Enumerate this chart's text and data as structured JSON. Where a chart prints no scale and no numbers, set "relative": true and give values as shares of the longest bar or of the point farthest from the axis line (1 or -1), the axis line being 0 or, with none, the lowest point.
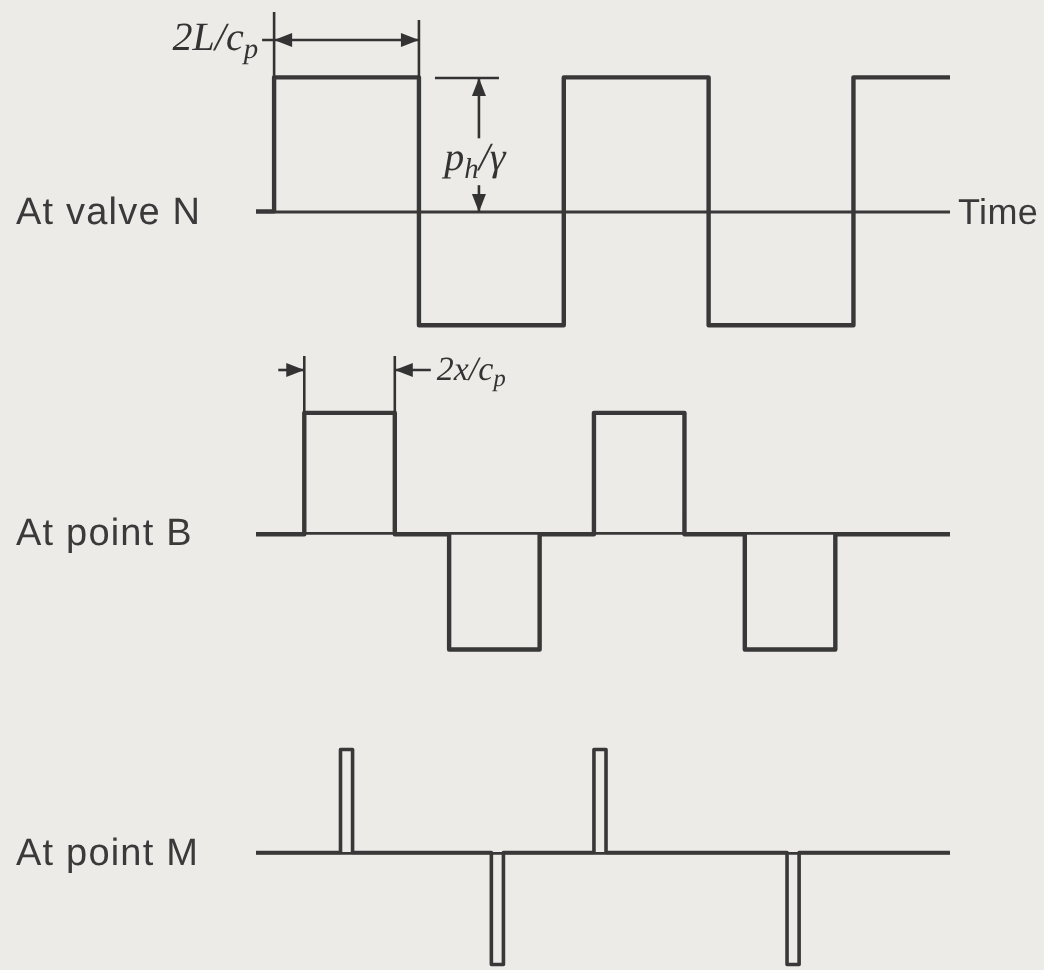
{
  "chart_data": [
    {
      "type": "step",
      "relative": true,
      "ylabel": "At valve N",
      "xlabel": "Time",
      "color": "#383838",
      "annotations": [
        "2L/c$_{p}$",
        "p$_{h}$/γ"
      ],
      "categories": [
        null,
        null,
        null,
        null,
        null,
        null,
        null,
        null,
        null,
        null,
        null,
        null,
        null,
        null,
        null,
        null,
        null,
        null,
        null,
        null,
        null,
        null,
        null,
        null,
        null,
        null,
        null,
        null,
        null,
        null,
        null,
        null,
        null,
        null,
        null,
        null,
        null,
        null,
        null,
        null,
        null,
        null,
        null,
        null,
        null,
        null,
        null,
        null,
        null,
        null,
        null,
        null,
        null,
        null,
        null,
        null,
        null,
        null,
        null,
        null,
        null,
        null,
        null,
        null,
        null,
        null,
        null,
        null,
        null,
        null,
        null,
        null,
        null,
        null,
        null,
        null,
        null,
        null,
        null,
        null,
        null,
        null,
        null,
        null,
        null,
        null,
        null,
        null,
        null,
        null,
        null,
        null,
        null,
        null,
        null,
        null,
        null,
        null,
        null,
        null,
        null,
        null,
        null,
        null,
        null,
        null,
        null,
        null,
        null,
        null,
        null,
        null,
        null,
        null,
        null,
        null
      ],
      "values": [
        0,
        0,
        0,
        1,
        1,
        1,
        1,
        1,
        1,
        1,
        1,
        1,
        1,
        1,
        1,
        1,
        1,
        1,
        1,
        1,
        1,
        1,
        1,
        1,
        1,
        1,
        1,
        -0.85,
        -0.85,
        -0.85,
        -0.85,
        -0.85,
        -0.85,
        -0.85,
        -0.85,
        -0.85,
        -0.85,
        -0.85,
        -0.85,
        -0.85,
        -0.85,
        -0.85,
        -0.85,
        -0.85,
        -0.85,
        -0.85,
        -0.85,
        -0.85,
        -0.85,
        -0.85,
        -0.85,
        1,
        1,
        1,
        1,
        1,
        1,
        1,
        1,
        1,
        1,
        1,
        1,
        1,
        1,
        1,
        1,
        1,
        1,
        1,
        1,
        1,
        1,
        1,
        1,
        -0.85,
        -0.85,
        -0.85,
        -0.85,
        -0.85,
        -0.85,
        -0.85,
        -0.85,
        -0.85,
        -0.85,
        -0.85,
        -0.85,
        -0.85,
        -0.85,
        -0.85,
        -0.85,
        -0.85,
        -0.85,
        -0.85,
        -0.85,
        -0.85,
        -0.85,
        -0.85,
        -0.85,
        1,
        1,
        1,
        1,
        1,
        1,
        1,
        1,
        1,
        1,
        1,
        1,
        1,
        1,
        1,
        1,
        1
      ]
    },
    {
      "type": "step",
      "relative": true,
      "ylabel": "At point B",
      "color": "#383838",
      "annotations": [
        "2x/c$_{p}$"
      ],
      "categories": [
        null,
        null,
        null,
        null,
        null,
        null,
        null,
        null,
        null,
        null,
        null,
        null,
        null,
        null,
        null,
        null,
        null,
        null,
        null,
        null,
        null,
        null,
        null,
        null,
        null,
        null,
        null,
        null,
        null,
        null,
        null,
        null,
        null,
        null,
        null,
        null,
        null,
        null,
        null,
        null,
        null,
        null,
        null,
        null,
        null,
        null,
        null,
        null,
        null,
        null,
        null,
        null,
        null,
        null,
        null,
        null,
        null,
        null,
        null,
        null,
        null,
        null,
        null,
        null,
        null,
        null,
        null,
        null,
        null,
        null,
        null,
        null,
        null,
        null,
        null,
        null,
        null,
        null,
        null,
        null,
        null,
        null,
        null,
        null,
        null,
        null,
        null,
        null,
        null,
        null,
        null,
        null,
        null,
        null,
        null,
        null,
        null,
        null,
        null,
        null,
        null,
        null,
        null,
        null,
        null,
        null,
        null,
        null,
        null,
        null,
        null,
        null,
        null,
        null,
        null,
        null
      ],
      "values": [
        0,
        0,
        0,
        0,
        0,
        0,
        0,
        0,
        1,
        1,
        1,
        1,
        1,
        1,
        1,
        1,
        1,
        1,
        1,
        1,
        1,
        1,
        1,
        0,
        0,
        0,
        0,
        0,
        0,
        0,
        0,
        0,
        -0.95,
        -0.95,
        -0.95,
        -0.95,
        -0.95,
        -0.95,
        -0.95,
        -0.95,
        -0.95,
        -0.95,
        -0.95,
        -0.95,
        -0.95,
        -0.95,
        -0.95,
        0,
        0,
        0,
        0,
        0,
        0,
        0,
        0,
        0,
        1,
        1,
        1,
        1,
        1,
        1,
        1,
        1,
        1,
        1,
        1,
        1,
        1,
        1,
        1,
        0,
        0,
        0,
        0,
        0,
        0,
        0,
        0,
        0,
        0,
        -0.95,
        -0.95,
        -0.95,
        -0.95,
        -0.95,
        -0.95,
        -0.95,
        -0.95,
        -0.95,
        -0.95,
        -0.95,
        -0.95,
        -0.95,
        -0.95,
        -0.95,
        0,
        0,
        0,
        0,
        0,
        0,
        0,
        0,
        0,
        0,
        0,
        0,
        0,
        0,
        0,
        0,
        0,
        0,
        0,
        0
      ]
    },
    {
      "type": "step",
      "relative": true,
      "ylabel": "At point M",
      "color": "#383838",
      "categories": [
        null,
        null,
        null,
        null,
        null,
        null,
        null,
        null,
        null,
        null,
        null,
        null,
        null,
        null,
        null,
        null,
        null,
        null,
        null,
        null,
        null,
        null,
        null,
        null,
        null,
        null,
        null,
        null,
        null,
        null,
        null,
        null,
        null,
        null,
        null,
        null,
        null,
        null,
        null,
        null,
        null,
        null,
        null,
        null,
        null,
        null,
        null,
        null,
        null,
        null,
        null,
        null,
        null,
        null,
        null,
        null,
        null,
        null,
        null,
        null,
        null,
        null,
        null,
        null,
        null,
        null,
        null,
        null,
        null,
        null,
        null,
        null,
        null,
        null,
        null,
        null,
        null,
        null,
        null,
        null,
        null,
        null,
        null,
        null,
        null,
        null,
        null,
        null,
        null,
        null,
        null,
        null,
        null,
        null,
        null,
        null,
        null,
        null,
        null,
        null,
        null,
        null,
        null,
        null,
        null,
        null,
        null,
        null,
        null,
        null,
        null,
        null,
        null,
        null,
        null,
        null
      ],
      "values": [
        0,
        0,
        0,
        0,
        0,
        0,
        0,
        0,
        0,
        0,
        0,
        0,
        0,
        0,
        0.92,
        0.92,
        0,
        0,
        0,
        0,
        0,
        0,
        0,
        0,
        0,
        0,
        0,
        0,
        0,
        0,
        0,
        0,
        0,
        0,
        0,
        0,
        0,
        0,
        0,
        -1,
        -1,
        0,
        0,
        0,
        0,
        0,
        0,
        0,
        0,
        0,
        0,
        0,
        0,
        0,
        0,
        0,
        0.92,
        0.92,
        0,
        0,
        0,
        0,
        0,
        0,
        0,
        0,
        0,
        0,
        0,
        0,
        0,
        0,
        0,
        0,
        0,
        0,
        0,
        0,
        0,
        0,
        0,
        0,
        0,
        0,
        0,
        0,
        0,
        0,
        -1,
        -1,
        0,
        0,
        0,
        0,
        0,
        0,
        0,
        0,
        0,
        0,
        0,
        0,
        0,
        0,
        0,
        0,
        0,
        0,
        0,
        0,
        0,
        0,
        0,
        0,
        0,
        0
      ]
    }
  ]
}
